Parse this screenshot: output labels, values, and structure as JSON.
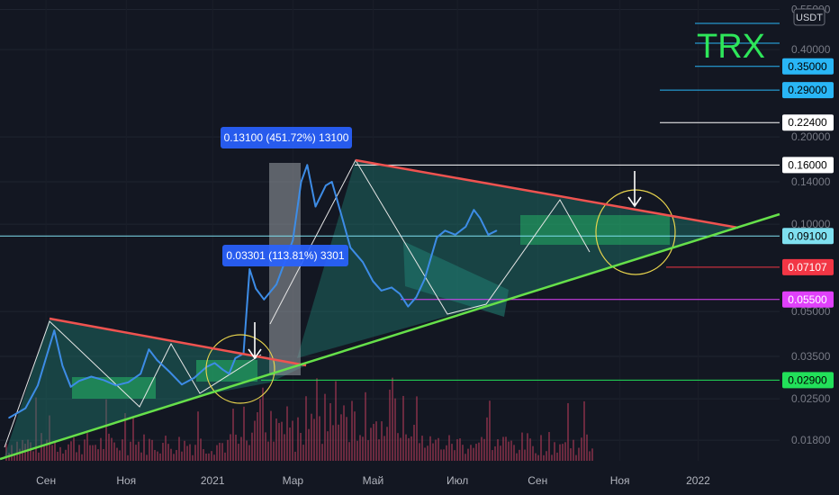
{
  "chart_data": {
    "type": "line",
    "symbol": "TRX",
    "currency": "USDT",
    "scale": "log",
    "grid": true,
    "x_labels": [
      "Сен",
      "Ноя",
      "2021",
      "Мар",
      "Май",
      "Июл",
      "Сен",
      "Ноя",
      "2022"
    ],
    "y_ticks": [
      0.018,
      0.025,
      0.035,
      0.05,
      0.1,
      0.14,
      0.2,
      0.4,
      0.55
    ],
    "y_tick_labels": [
      "0.01800",
      "0.02500",
      "0.03500",
      "0.05000",
      "0.10000",
      "0.14000",
      "0.20000",
      "0.40000",
      "0.55000"
    ],
    "y_range": [
      0.0155,
      0.56
    ],
    "x_range": [
      0,
      16.4
    ],
    "series": [
      {
        "color": "#3d8ce6",
        "points": [
          [
            0,
            0.0215
          ],
          [
            0.4,
            0.0232
          ],
          [
            0.7,
            0.0278
          ],
          [
            0.95,
            0.0365
          ],
          [
            1.1,
            0.043
          ],
          [
            1.3,
            0.0325
          ],
          [
            1.5,
            0.0275
          ],
          [
            1.7,
            0.0288
          ],
          [
            2,
            0.0298
          ],
          [
            2.3,
            0.029
          ],
          [
            2.6,
            0.0278
          ],
          [
            2.9,
            0.0285
          ],
          [
            3.2,
            0.0305
          ],
          [
            3.4,
            0.037
          ],
          [
            3.6,
            0.034
          ],
          [
            3.9,
            0.031
          ],
          [
            4.2,
            0.028
          ],
          [
            4.5,
            0.0295
          ],
          [
            4.8,
            0.0322
          ],
          [
            5,
            0.0332
          ],
          [
            5.2,
            0.0315
          ],
          [
            5.35,
            0.0305
          ],
          [
            5.5,
            0.0345
          ],
          [
            5.7,
            0.0358
          ],
          [
            5.85,
            0.07
          ],
          [
            6,
            0.06
          ],
          [
            6.2,
            0.055
          ],
          [
            6.5,
            0.062
          ],
          [
            6.9,
            0.088
          ],
          [
            7.1,
            0.14
          ],
          [
            7.25,
            0.16
          ],
          [
            7.45,
            0.115
          ],
          [
            7.7,
            0.136
          ],
          [
            7.85,
            0.14
          ],
          [
            8.1,
            0.105
          ],
          [
            8.3,
            0.083
          ],
          [
            8.6,
            0.074
          ],
          [
            8.85,
            0.0635
          ],
          [
            9.05,
            0.059
          ],
          [
            9.3,
            0.0605
          ],
          [
            9.5,
            0.0575
          ],
          [
            9.7,
            0.052
          ],
          [
            9.9,
            0.056
          ],
          [
            10.1,
            0.0645
          ],
          [
            10.4,
            0.09
          ],
          [
            10.6,
            0.095
          ],
          [
            10.85,
            0.092
          ],
          [
            11.1,
            0.098
          ],
          [
            11.3,
            0.112
          ],
          [
            11.45,
            0.105
          ],
          [
            11.65,
            0.092
          ],
          [
            11.85,
            0.095
          ]
        ]
      }
    ],
    "annotations": {
      "measure_top": "0.13100 (451.72%) 13100",
      "measure_bottom": "0.03301 (113.81%) 3301"
    },
    "price_labels": [
      {
        "value": 0.35,
        "text": "0.35000",
        "bg": "#29b6f6",
        "fg": "#000000"
      },
      {
        "value": 0.29,
        "text": "0.29000",
        "bg": "#29b6f6",
        "fg": "#000000"
      },
      {
        "value": 0.224,
        "text": "0.22400",
        "bg": "#ffffff",
        "fg": "#000000"
      },
      {
        "value": 0.16,
        "text": "0.16000",
        "bg": "#ffffff",
        "fg": "#000000"
      },
      {
        "value": 0.091,
        "text": "0.09100",
        "bg": "#7fe0f0",
        "fg": "#000000"
      },
      {
        "value": 0.07107,
        "text": "0.07107",
        "bg": "#f23645",
        "fg": "#ffffff"
      },
      {
        "value": 0.055,
        "text": "0.05500",
        "bg": "#e040fb",
        "fg": "#ffffff"
      },
      {
        "value": 0.029,
        "text": "0.02900",
        "bg": "#22e05a",
        "fg": "#000000"
      }
    ],
    "colors": {
      "background": "#131722",
      "resistance": "#ef5350",
      "support": "#66e04a",
      "price_line": "#3d8ce6",
      "triangle_fill": "#1f7a6e",
      "zone_fill": "#26c66a",
      "title": "#2ee65a",
      "volume": "#b23a58"
    }
  }
}
